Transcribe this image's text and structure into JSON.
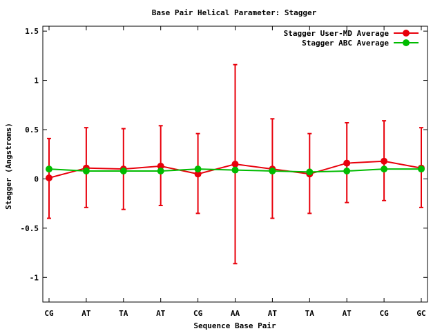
{
  "chart_data": {
    "type": "line",
    "title": "Base Pair Helical Parameter: Stagger",
    "xlabel": "Sequence Base Pair",
    "ylabel": "Stagger (Angstroms)",
    "categories": [
      "CG",
      "AT",
      "TA",
      "AT",
      "CG",
      "AA",
      "AT",
      "TA",
      "AT",
      "CG",
      "GC"
    ],
    "ylim": [
      -1.25,
      1.55
    ],
    "yticks": [
      -1,
      -0.5,
      0,
      0.5,
      1,
      1.5
    ],
    "ytick_labels": [
      "-1",
      "-0.5",
      "0",
      "0.5",
      "1",
      "1.5"
    ],
    "grid": false,
    "legend_position": "top-right",
    "series": [
      {
        "name": "Stagger User-MD Average",
        "color": "#e8000b",
        "values": [
          0.01,
          0.11,
          0.1,
          0.13,
          0.05,
          0.15,
          0.1,
          0.05,
          0.16,
          0.18,
          0.11
        ],
        "error_low": [
          -0.4,
          -0.29,
          -0.31,
          -0.27,
          -0.35,
          -0.86,
          -0.4,
          -0.35,
          -0.24,
          -0.22,
          -0.29
        ],
        "error_high": [
          0.41,
          0.52,
          0.51,
          0.54,
          0.46,
          1.16,
          0.61,
          0.46,
          0.57,
          0.59,
          0.52
        ]
      },
      {
        "name": "Stagger ABC Average",
        "color": "#00bb00",
        "values": [
          0.1,
          0.08,
          0.08,
          0.08,
          0.1,
          0.09,
          0.08,
          0.07,
          0.08,
          0.1,
          0.1
        ]
      }
    ]
  }
}
